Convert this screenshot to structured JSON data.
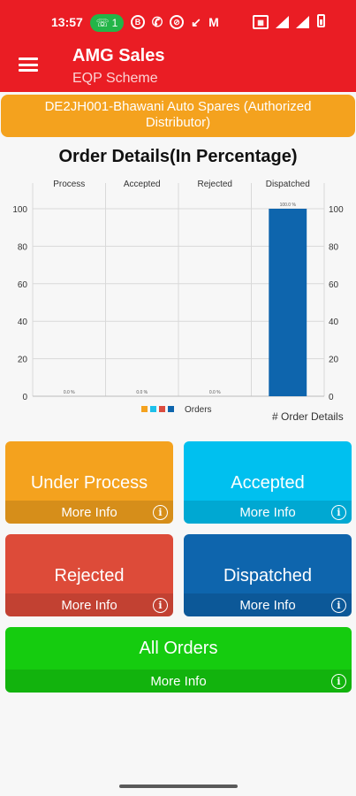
{
  "status_bar": {
    "time": "13:57",
    "call_badge": "1"
  },
  "app_bar": {
    "title": "AMG Sales",
    "subtitle": "EQP Scheme"
  },
  "distributor": "DE2JH001-Bhawani Auto Spares (Authorized Distributor)",
  "chart_heading": "Order Details(In Percentage)",
  "chart_data": {
    "type": "bar",
    "categories": [
      "Process",
      "Accepted",
      "Rejected",
      "Dispatched"
    ],
    "values": [
      0,
      0,
      0,
      100
    ],
    "data_labels": [
      "0.0 %",
      "0.0 %",
      "0.0 %",
      "100.0 %"
    ],
    "ylim": [
      0,
      100
    ],
    "yticks": [
      "0",
      "20",
      "40",
      "60",
      "80",
      "100"
    ],
    "grid": true,
    "legend_label": "Orders",
    "legend_colors": [
      "#f4a21e",
      "#1ec0ea",
      "#db4c3f",
      "#0e65ad"
    ],
    "bar_color": "#0e65ad"
  },
  "order_details_link": "# Order Details",
  "tiles": {
    "under_process": {
      "label": "Under Process",
      "more": "More Info",
      "color": "#f4a21e"
    },
    "accepted": {
      "label": "Accepted",
      "more": "More Info",
      "color": "#00c0ef"
    },
    "rejected": {
      "label": "Rejected",
      "more": "More Info",
      "color": "#dd4b39"
    },
    "dispatched": {
      "label": "Dispatched",
      "more": "More Info",
      "color": "#0e65ad"
    },
    "all_orders": {
      "label": "All Orders",
      "more": "More Info",
      "color": "#15cc0f"
    }
  }
}
